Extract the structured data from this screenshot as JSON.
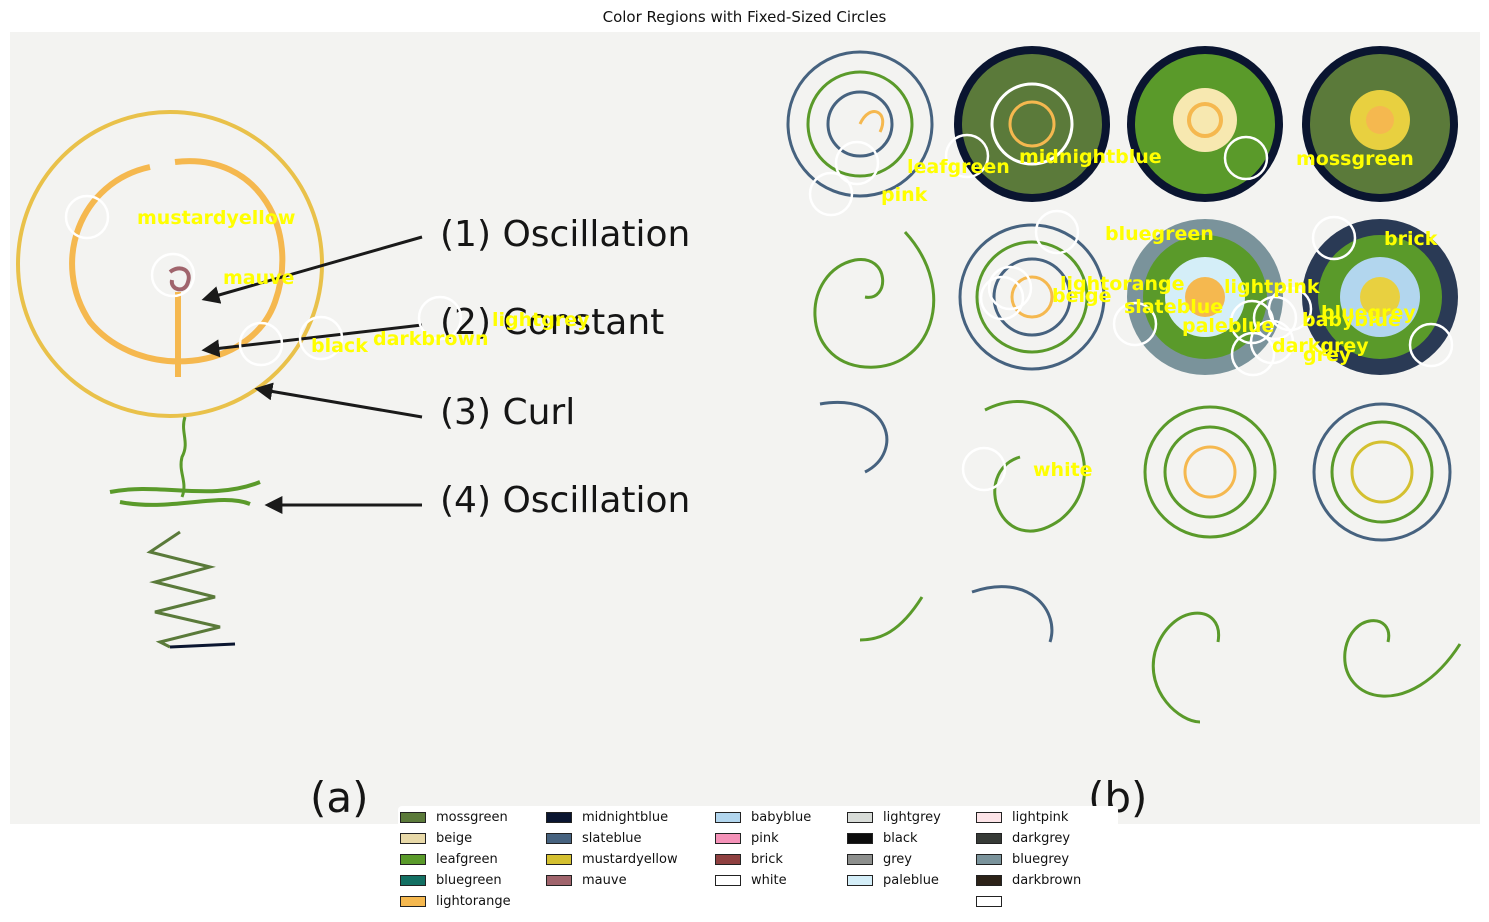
{
  "title": "Color Regions with Fixed-Sized Circles",
  "panel_a": {
    "labels": [
      "(1) Oscillation",
      "(2) Constant",
      "(3) Curl",
      "(4) Oscillation"
    ],
    "caption": "(a)"
  },
  "panel_b": {
    "caption": "(b)"
  },
  "annotations": [
    {
      "name": "mustardyellow"
    },
    {
      "name": "mauve"
    },
    {
      "name": "lightgrey"
    },
    {
      "name": "black"
    },
    {
      "name": "darkbrown"
    },
    {
      "name": "leafgreen"
    },
    {
      "name": "midnightblue"
    },
    {
      "name": "mossgreen"
    },
    {
      "name": "pink"
    },
    {
      "name": "bluegreen"
    },
    {
      "name": "brick"
    },
    {
      "name": "lightorange"
    },
    {
      "name": "beige"
    },
    {
      "name": "lightpink"
    },
    {
      "name": "slateblue"
    },
    {
      "name": "paleblue"
    },
    {
      "name": "babyblue"
    },
    {
      "name": "bluegrey"
    },
    {
      "name": "darkgrey"
    },
    {
      "name": "grey"
    },
    {
      "name": "white"
    }
  ],
  "legend": [
    [
      {
        "label": "mossgreen",
        "color": "#5b7a3a"
      },
      {
        "label": "beige",
        "color": "#e8d9a8"
      },
      {
        "label": "leafgreen",
        "color": "#5a9a2a"
      },
      {
        "label": "bluegreen",
        "color": "#137063"
      },
      {
        "label": "lightorange",
        "color": "#f5b84f"
      }
    ],
    [
      {
        "label": "midnightblue",
        "color": "#0a1530"
      },
      {
        "label": "slateblue",
        "color": "#46627f"
      },
      {
        "label": "mustardyellow",
        "color": "#d4c030"
      },
      {
        "label": "mauve",
        "color": "#a0646c"
      }
    ],
    [
      {
        "label": "babyblue",
        "color": "#b2d6ee"
      },
      {
        "label": "pink",
        "color": "#f592b8"
      },
      {
        "label": "brick",
        "color": "#8f4040"
      },
      {
        "label": "white",
        "color": "#ffffff"
      }
    ],
    [
      {
        "label": "lightgrey",
        "color": "#d8dcd8"
      },
      {
        "label": "black",
        "color": "#0c0c0c"
      },
      {
        "label": "grey",
        "color": "#8d8f8d"
      },
      {
        "label": "paleblue",
        "color": "#d4eef8"
      }
    ],
    [
      {
        "label": "lightpink",
        "color": "#fde4e8"
      },
      {
        "label": "darkgrey",
        "color": "#363a36"
      },
      {
        "label": "bluegrey",
        "color": "#7a939b"
      },
      {
        "label": "darkbrown",
        "color": "#2c2218"
      }
    ]
  ],
  "colors": {
    "annotation_text": "#ffff00",
    "circle_stroke": "#ffffff"
  }
}
